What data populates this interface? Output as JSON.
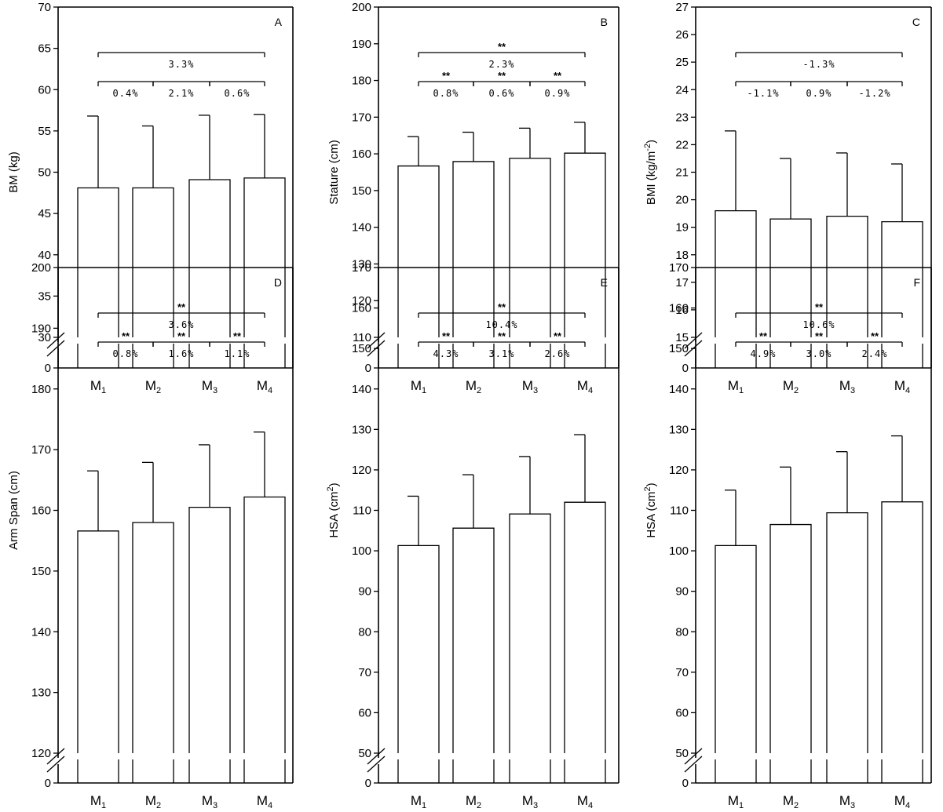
{
  "categories": [
    {
      "main": "M",
      "sub": "1"
    },
    {
      "main": "M",
      "sub": "2"
    },
    {
      "main": "M",
      "sub": "3"
    },
    {
      "main": "M",
      "sub": "4"
    }
  ],
  "chart_data": [
    {
      "type": "bar",
      "panel": "A",
      "ylabel": "BM (kg)",
      "ylabel_sup": "",
      "ylabel_end": "",
      "ylim": [
        30,
        70
      ],
      "yticks": [
        30,
        35,
        40,
        45,
        50,
        55,
        60,
        65,
        70
      ],
      "axis_break": true,
      "zero_label": "0",
      "values": [
        48.1,
        48.1,
        49.1,
        49.3
      ],
      "errors": [
        8.7,
        7.5,
        7.8,
        7.7
      ],
      "brackets": [
        {
          "from": 0,
          "to": 3,
          "sig": "",
          "pct": "3.3%"
        },
        {
          "from": 0,
          "to": 1,
          "sig": "",
          "pct": "0.4%"
        },
        {
          "from": 1,
          "to": 2,
          "sig": "",
          "pct": "2.1%"
        },
        {
          "from": 2,
          "to": 3,
          "sig": "",
          "pct": "0.6%"
        }
      ]
    },
    {
      "type": "bar",
      "panel": "B",
      "ylabel": "Stature (cm)",
      "ylabel_sup": "",
      "ylabel_end": "",
      "ylim": [
        110,
        200
      ],
      "yticks": [
        110,
        120,
        130,
        140,
        150,
        160,
        170,
        180,
        190,
        200
      ],
      "axis_break": true,
      "zero_label": "0",
      "values": [
        156.7,
        157.9,
        158.8,
        160.2
      ],
      "errors": [
        8.0,
        8.0,
        8.2,
        8.4
      ],
      "brackets": [
        {
          "from": 0,
          "to": 3,
          "sig": "**",
          "pct": "2.3%"
        },
        {
          "from": 0,
          "to": 1,
          "sig": "**",
          "pct": "0.8%"
        },
        {
          "from": 1,
          "to": 2,
          "sig": "**",
          "pct": "0.6%"
        },
        {
          "from": 2,
          "to": 3,
          "sig": "**",
          "pct": "0.9%"
        }
      ]
    },
    {
      "type": "bar",
      "panel": "C",
      "ylabel": "BMI (kg/m",
      "ylabel_sup": "-2",
      "ylabel_end": ")",
      "ylim": [
        15,
        27
      ],
      "yticks": [
        15,
        16,
        17,
        18,
        19,
        20,
        21,
        22,
        23,
        24,
        25,
        26,
        27
      ],
      "axis_break": true,
      "zero_label": "0",
      "values": [
        19.6,
        19.3,
        19.4,
        19.2
      ],
      "errors": [
        2.9,
        2.2,
        2.3,
        2.1
      ],
      "brackets": [
        {
          "from": 0,
          "to": 3,
          "sig": "",
          "pct": "-1.3%"
        },
        {
          "from": 0,
          "to": 1,
          "sig": "",
          "pct": "-1.1%"
        },
        {
          "from": 1,
          "to": 2,
          "sig": "",
          "pct": "0.9%"
        },
        {
          "from": 2,
          "to": 3,
          "sig": "",
          "pct": "-1.2%"
        }
      ]
    },
    {
      "type": "bar",
      "panel": "D",
      "ylabel": "Arm Span (cm)",
      "ylabel_sup": "",
      "ylabel_end": "",
      "ylim": [
        120,
        200
      ],
      "yticks": [
        120,
        130,
        140,
        150,
        160,
        170,
        180,
        190,
        200
      ],
      "axis_break": true,
      "zero_label": "0",
      "values": [
        156.6,
        158.0,
        160.5,
        162.2
      ],
      "errors": [
        9.9,
        9.9,
        10.3,
        10.7
      ],
      "brackets": [
        {
          "from": 0,
          "to": 3,
          "sig": "**",
          "pct": "3.6%"
        },
        {
          "from": 0,
          "to": 1,
          "sig": "**",
          "pct": "0.8%"
        },
        {
          "from": 1,
          "to": 2,
          "sig": "**",
          "pct": "1.6%"
        },
        {
          "from": 2,
          "to": 3,
          "sig": "**",
          "pct": "1.1%"
        }
      ]
    },
    {
      "type": "bar",
      "panel": "E",
      "ylabel": "HSA (cm",
      "ylabel_sup": "2",
      "ylabel_end": ")",
      "ylim": [
        50,
        170
      ],
      "yticks": [
        50,
        60,
        70,
        80,
        90,
        100,
        110,
        120,
        130,
        140,
        150,
        160,
        170
      ],
      "axis_break": true,
      "zero_label": "0",
      "values": [
        101.3,
        105.6,
        109.1,
        112.0
      ],
      "errors": [
        12.2,
        13.2,
        14.2,
        16.7
      ],
      "brackets": [
        {
          "from": 0,
          "to": 3,
          "sig": "**",
          "pct": "10.4%"
        },
        {
          "from": 0,
          "to": 1,
          "sig": "**",
          "pct": "4.3%"
        },
        {
          "from": 1,
          "to": 2,
          "sig": "**",
          "pct": "3.1%"
        },
        {
          "from": 2,
          "to": 3,
          "sig": "**",
          "pct": "2.6%"
        }
      ]
    },
    {
      "type": "bar",
      "panel": "F",
      "ylabel": "HSA (cm",
      "ylabel_sup": "2",
      "ylabel_end": ")",
      "ylim": [
        50,
        170
      ],
      "yticks": [
        50,
        60,
        70,
        80,
        90,
        100,
        110,
        120,
        130,
        140,
        150,
        160,
        170
      ],
      "axis_break": true,
      "zero_label": "0",
      "values": [
        101.3,
        106.5,
        109.4,
        112.1
      ],
      "errors": [
        13.7,
        14.2,
        15.1,
        16.3
      ],
      "brackets": [
        {
          "from": 0,
          "to": 3,
          "sig": "**",
          "pct": "10.6%"
        },
        {
          "from": 0,
          "to": 1,
          "sig": "**",
          "pct": "4.9%"
        },
        {
          "from": 1,
          "to": 2,
          "sig": "**",
          "pct": "3.0%"
        },
        {
          "from": 2,
          "to": 3,
          "sig": "**",
          "pct": "2.4%"
        }
      ]
    }
  ]
}
